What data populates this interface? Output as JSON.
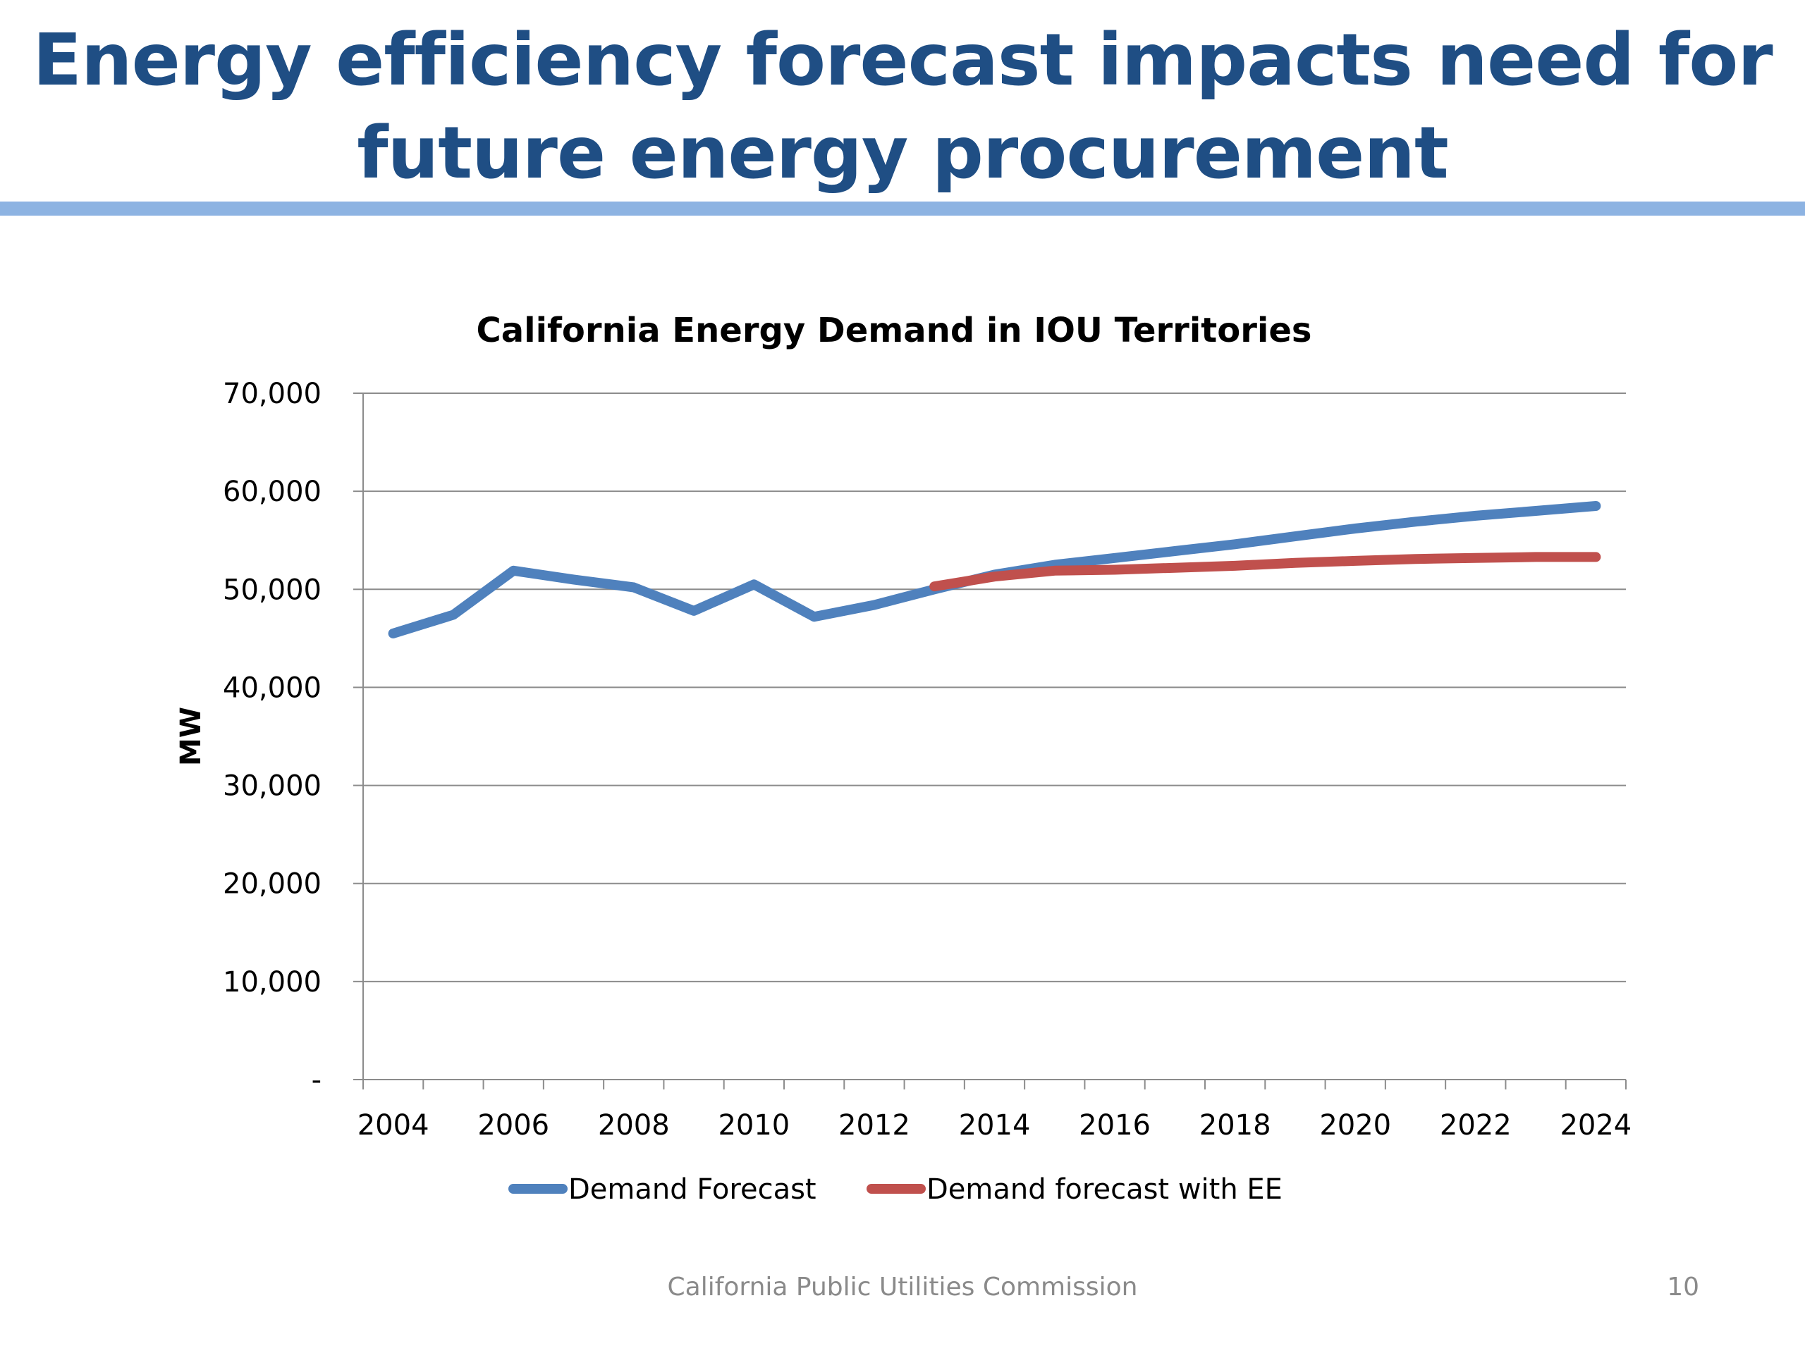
{
  "slide": {
    "title_line1": "Energy efficiency forecast impacts need for",
    "title_line2": "future energy procurement",
    "footer": "California Public Utilities Commission",
    "page_number": "10",
    "title_color": "#1f4e84",
    "rule_color": "#8db3e2"
  },
  "chart_data": {
    "type": "line",
    "title": "California Energy Demand in IOU Territories",
    "xlabel": "",
    "ylabel": "MW",
    "ylim": [
      0,
      70000
    ],
    "xlim": [
      2003.5,
      2024.5
    ],
    "y_ticks": [
      {
        "value": 0,
        "label": "-"
      },
      {
        "value": 10000,
        "label": "10,000"
      },
      {
        "value": 20000,
        "label": "20,000"
      },
      {
        "value": 30000,
        "label": "30,000"
      },
      {
        "value": 40000,
        "label": "40,000"
      },
      {
        "value": 50000,
        "label": "50,000"
      },
      {
        "value": 60000,
        "label": "60,000"
      },
      {
        "value": 70000,
        "label": "70,000"
      }
    ],
    "x_tick_labels": [
      "2004",
      "2006",
      "2008",
      "2010",
      "2012",
      "2014",
      "2016",
      "2018",
      "2020",
      "2022",
      "2024"
    ],
    "grid": "horizontal",
    "legend": "bottom",
    "series": [
      {
        "name": "Demand Forecast",
        "color": "#4f81bd",
        "x": [
          2004,
          2005,
          2006,
          2007,
          2008,
          2009,
          2010,
          2011,
          2012,
          2013,
          2014,
          2015,
          2016,
          2017,
          2018,
          2019,
          2020,
          2021,
          2022,
          2023,
          2024
        ],
        "values": [
          45500,
          47400,
          51900,
          51000,
          50200,
          47800,
          50500,
          47200,
          48400,
          50000,
          51500,
          52500,
          53200,
          53900,
          54600,
          55400,
          56200,
          56900,
          57500,
          58000,
          58500
        ]
      },
      {
        "name": "Demand forecast with EE",
        "color": "#c0504d",
        "x": [
          2013,
          2014,
          2015,
          2016,
          2017,
          2018,
          2019,
          2020,
          2021,
          2022,
          2023,
          2024
        ],
        "values": [
          50300,
          51300,
          51900,
          52000,
          52200,
          52400,
          52700,
          52900,
          53100,
          53200,
          53300,
          53300
        ]
      }
    ]
  }
}
